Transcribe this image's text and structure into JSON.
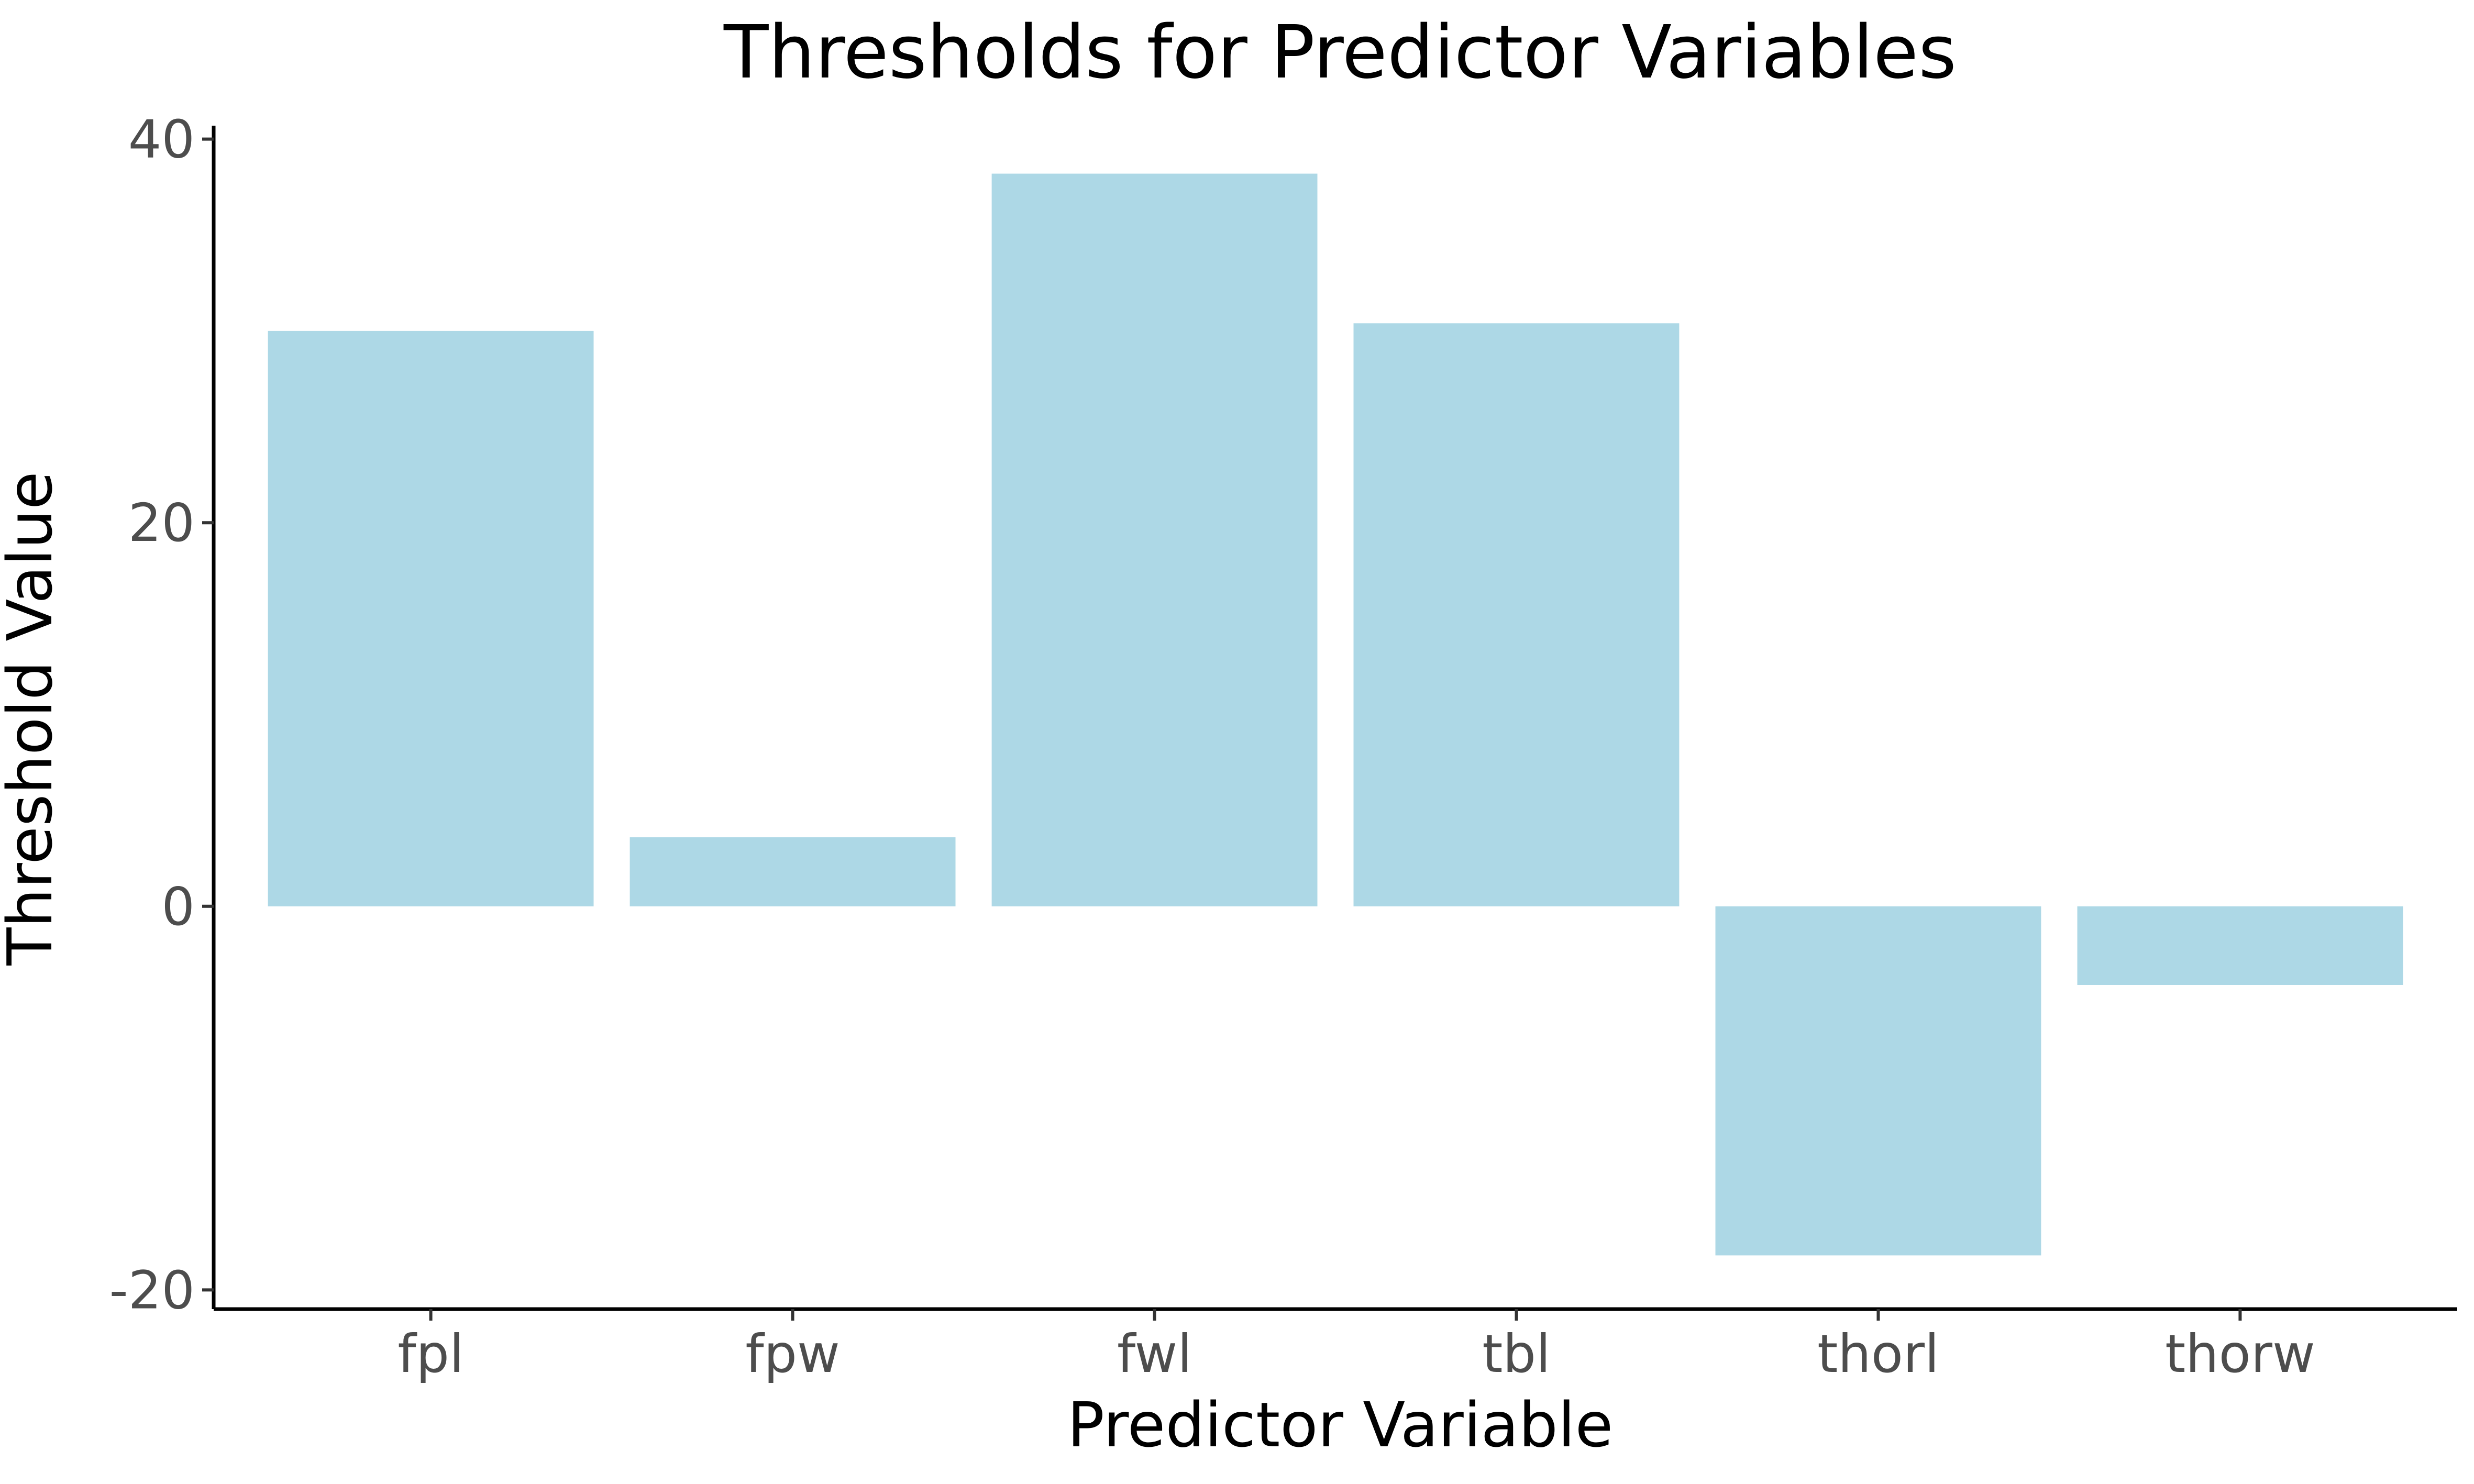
{
  "chart_data": {
    "type": "bar",
    "title": "Thresholds for Predictor Variables",
    "xlabel": "Predictor Variable",
    "ylabel": "Threshold Value",
    "categories": [
      "fpl",
      "fpw",
      "fwl",
      "tbl",
      "thorl",
      "thorw"
    ],
    "values": [
      30,
      3.6,
      38.2,
      30.4,
      -18.2,
      -4.1
    ],
    "ylim": [
      -21,
      40.7
    ],
    "yticks": [
      "-20",
      "0",
      "20",
      "40"
    ],
    "bar_color": "#add8e6",
    "grid": false,
    "legend": "none"
  }
}
